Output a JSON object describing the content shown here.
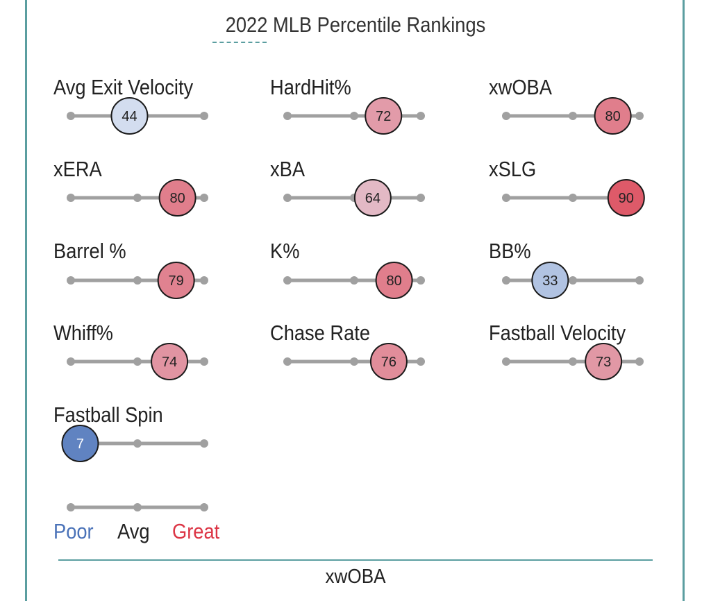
{
  "chart_data": {
    "type": "scatter",
    "title": "2022 MLB Percentile Rankings",
    "xlim": [
      0,
      100
    ],
    "grid": false,
    "metrics": [
      {
        "label": "Avg Exit Velocity",
        "value": 44
      },
      {
        "label": "HardHit%",
        "value": 72
      },
      {
        "label": "xwOBA",
        "value": 80
      },
      {
        "label": "xERA",
        "value": 80
      },
      {
        "label": "xBA",
        "value": 64
      },
      {
        "label": "xSLG",
        "value": 90
      },
      {
        "label": "Barrel %",
        "value": 79
      },
      {
        "label": "K%",
        "value": 80
      },
      {
        "label": "BB%",
        "value": 33
      },
      {
        "label": "Whiff%",
        "value": 74
      },
      {
        "label": "Chase Rate",
        "value": 76
      },
      {
        "label": "Fastball Velocity",
        "value": 73
      },
      {
        "label": "Fastball Spin",
        "value": 7
      }
    ],
    "legend": {
      "poor": "Poor",
      "avg": "Avg",
      "great": "Great"
    },
    "colors": {
      "poor": "#4a72b8",
      "neutral": "#e6ecf7",
      "great": "#dc3545",
      "track": "#a0a0a0"
    }
  },
  "footer": {
    "label": "xwOBA"
  }
}
